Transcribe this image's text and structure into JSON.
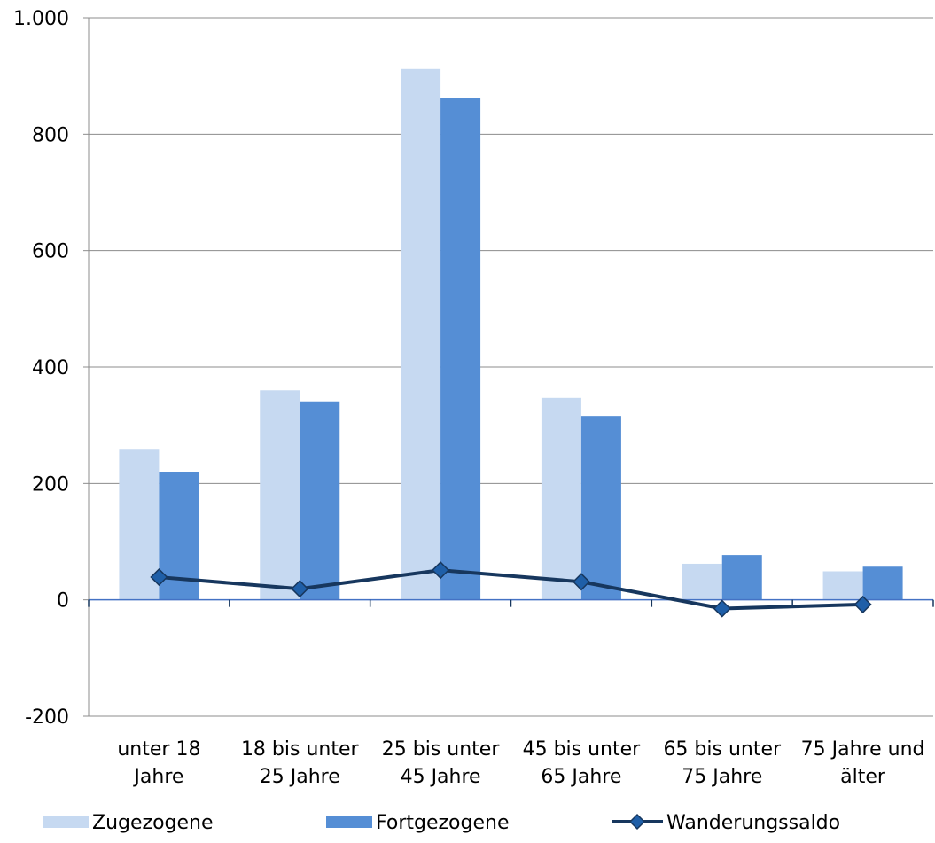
{
  "chart_data": {
    "type": "bar",
    "categories": [
      [
        "unter 18",
        "Jahre"
      ],
      [
        "18 bis unter",
        "25 Jahre"
      ],
      [
        "25 bis unter",
        "45 Jahre"
      ],
      [
        "45 bis unter",
        "65 Jahre"
      ],
      [
        "65 bis unter",
        "75 Jahre"
      ],
      [
        "75 Jahre und",
        "älter"
      ]
    ],
    "series": [
      {
        "name": "Zugezogene",
        "kind": "bar",
        "color": "#c6d9f1",
        "values": [
          258,
          360,
          912,
          347,
          62,
          49
        ]
      },
      {
        "name": "Fortgezogene",
        "kind": "bar",
        "color": "#558ed5",
        "values": [
          219,
          341,
          862,
          316,
          77,
          57
        ]
      },
      {
        "name": "Wanderungssaldo",
        "kind": "line",
        "color": "#17375e",
        "values": [
          39,
          19,
          51,
          31,
          -15,
          -8
        ]
      }
    ],
    "ylim": [
      -200,
      1000
    ],
    "yticks": [
      -200,
      0,
      200,
      400,
      600,
      800,
      1000
    ],
    "ytick_labels": [
      "-200",
      "0",
      "200",
      "400",
      "600",
      "800",
      "1.000"
    ],
    "grid": true,
    "legend_position": "bottom"
  }
}
